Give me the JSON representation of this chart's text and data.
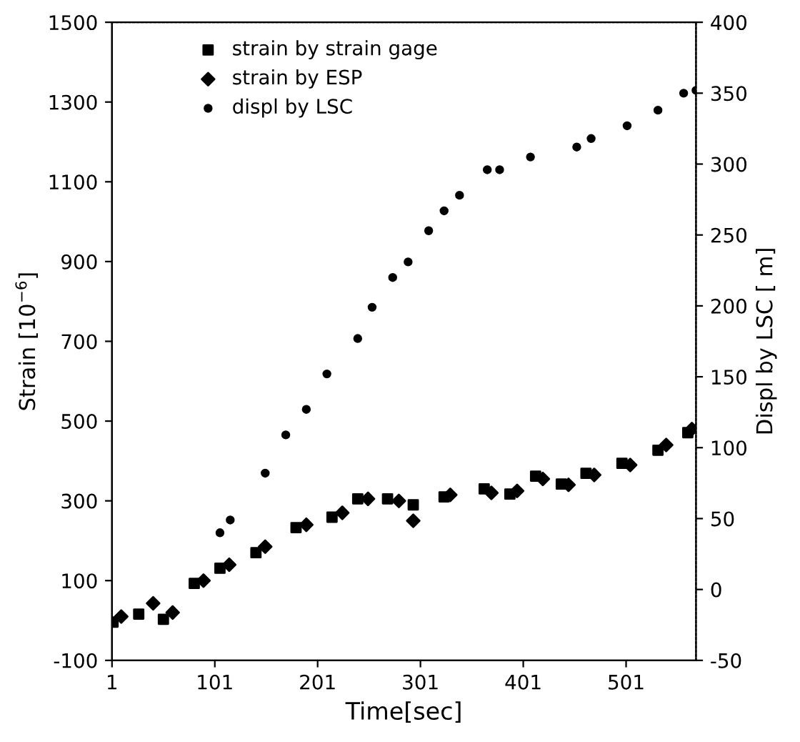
{
  "chart_data": {
    "type": "scatter",
    "xlabel": "Time[sec]",
    "ylabel": "Strain [10$^{−6}$]",
    "y2label": "Displ by LSC [ m]",
    "xlim": [
      1,
      569
    ],
    "xticks": [
      1,
      101,
      201,
      301,
      401,
      501
    ],
    "ylim": [
      -100,
      1500
    ],
    "yticks": [
      -100,
      100,
      300,
      500,
      700,
      900,
      1100,
      1300,
      1500
    ],
    "y2lim": [
      -50,
      400
    ],
    "y2ticks": [
      -50,
      0,
      50,
      100,
      150,
      200,
      250,
      300,
      350,
      400
    ],
    "legend": "top left",
    "grid": false,
    "series": [
      {
        "name": "strain by strain gage",
        "color": "#000000",
        "marker": "square",
        "x": [
          2,
          27,
          51,
          81,
          106,
          141,
          180,
          215,
          240,
          269,
          294,
          324,
          363,
          388,
          413,
          438,
          462,
          497,
          532,
          561
        ],
        "values": [
          -4,
          16,
          3,
          93,
          131,
          170,
          233,
          259,
          305,
          305,
          290,
          310,
          330,
          317,
          362,
          342,
          369,
          394,
          427,
          471
        ]
      },
      {
        "name": "strain by ESP",
        "color": "#000000",
        "marker": "diamond",
        "x": [
          10,
          41,
          60,
          90,
          115,
          150,
          190,
          225,
          250,
          280,
          294,
          330,
          370,
          395,
          420,
          445,
          470,
          505,
          540,
          565
        ],
        "values": [
          10,
          43,
          20,
          100,
          140,
          185,
          240,
          270,
          305,
          300,
          250,
          315,
          320,
          325,
          355,
          340,
          365,
          390,
          440,
          480
        ]
      },
      {
        "name": "displ by LSC",
        "color": "#000000",
        "marker": "circle",
        "axis": "y2",
        "x": [
          106,
          116,
          150,
          170,
          190,
          210,
          240,
          254,
          274,
          289,
          309,
          324,
          339,
          366,
          378,
          408,
          453,
          467,
          502,
          532,
          557,
          569
        ],
        "values": [
          40,
          49,
          82,
          109,
          127,
          152,
          177,
          199,
          220,
          231,
          253,
          267,
          278,
          296,
          296,
          305,
          312,
          318,
          327,
          338,
          350,
          352
        ]
      }
    ]
  }
}
